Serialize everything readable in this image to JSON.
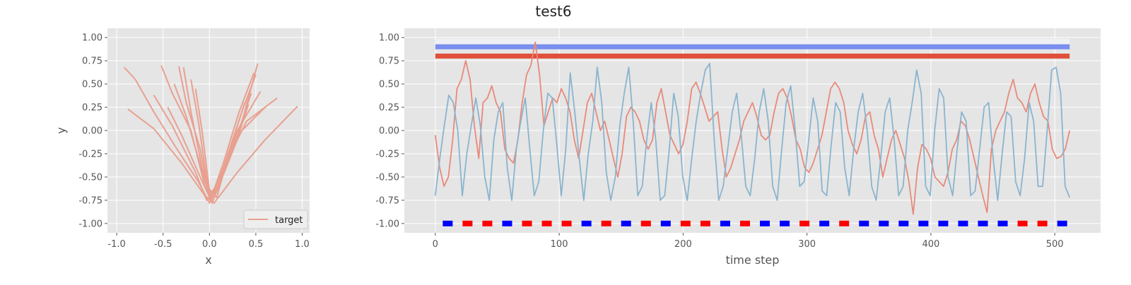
{
  "figure": {
    "title": "test6"
  },
  "colors": {
    "axes_bg": "#e5e5e5",
    "grid": "#ffffff",
    "target": "#e8a090",
    "signal_red": "#e8897a",
    "signal_blue": "#8ab4cf",
    "bar_light": "#eef0f6",
    "bar_blue": "#7b8ff0",
    "bar_red": "#e0503a",
    "marker_red": "#ff0000",
    "marker_blue": "#0000ff",
    "tick_text": "#555555"
  },
  "chart_data": [
    {
      "type": "line",
      "xlabel": "x",
      "ylabel": "y",
      "xlim": [
        -1.1,
        1.08
      ],
      "ylim": [
        -1.1,
        1.1
      ],
      "xticks": [
        "-1.0",
        "-0.5",
        "0.0",
        "0.5",
        "1.0"
      ],
      "yticks": [
        "1.00",
        "0.75",
        "0.50",
        "0.25",
        "0.00",
        "-0.25",
        "-0.50",
        "-0.75",
        "-1.00"
      ],
      "grid": true,
      "legend": {
        "placement": "lower-right",
        "entries": [
          "target"
        ]
      },
      "series": [
        {
          "name": "target",
          "segments": [
            [
              [
                -0.92,
                0.68
              ],
              [
                -0.8,
                0.55
              ],
              [
                -0.6,
                0.2
              ],
              [
                -0.35,
                -0.2
              ],
              [
                -0.12,
                -0.55
              ],
              [
                0.0,
                -0.78
              ],
              [
                0.1,
                -0.5
              ],
              [
                0.3,
                -0.1
              ],
              [
                0.52,
                0.72
              ]
            ],
            [
              [
                -0.88,
                0.23
              ],
              [
                -0.6,
                0.02
              ],
              [
                -0.3,
                -0.35
              ],
              [
                -0.05,
                -0.7
              ],
              [
                0.05,
                -0.78
              ],
              [
                0.3,
                -0.45
              ],
              [
                0.6,
                -0.1
              ],
              [
                0.95,
                0.26
              ]
            ],
            [
              [
                -0.52,
                0.7
              ],
              [
                -0.4,
                0.4
              ],
              [
                -0.2,
                0.0
              ],
              [
                -0.05,
                -0.6
              ],
              [
                0.02,
                -0.76
              ],
              [
                0.15,
                -0.4
              ],
              [
                0.35,
                0.2
              ],
              [
                0.5,
                0.6
              ]
            ],
            [
              [
                -0.33,
                0.69
              ],
              [
                -0.25,
                0.3
              ],
              [
                -0.1,
                -0.2
              ],
              [
                0.0,
                -0.72
              ],
              [
                0.12,
                -0.5
              ],
              [
                0.3,
                0.0
              ],
              [
                0.55,
                0.42
              ]
            ],
            [
              [
                -0.2,
                0.55
              ],
              [
                -0.12,
                0.1
              ],
              [
                -0.02,
                -0.6
              ],
              [
                0.05,
                -0.7
              ],
              [
                0.2,
                -0.3
              ],
              [
                0.4,
                0.1
              ],
              [
                0.73,
                0.35
              ]
            ],
            [
              [
                -0.6,
                0.38
              ],
              [
                -0.4,
                0.05
              ],
              [
                -0.15,
                -0.45
              ],
              [
                -0.03,
                -0.75
              ],
              [
                0.08,
                -0.6
              ],
              [
                0.25,
                -0.2
              ],
              [
                0.45,
                0.4
              ]
            ],
            [
              [
                -0.28,
                0.68
              ],
              [
                -0.2,
                0.2
              ],
              [
                -0.08,
                -0.4
              ],
              [
                0.02,
                -0.72
              ],
              [
                0.15,
                -0.35
              ],
              [
                0.32,
                0.2
              ],
              [
                0.48,
                0.62
              ]
            ],
            [
              [
                -0.45,
                0.25
              ],
              [
                -0.3,
                -0.05
              ],
              [
                -0.1,
                -0.5
              ],
              [
                0.03,
                -0.78
              ],
              [
                0.1,
                -0.6
              ],
              [
                0.28,
                -0.15
              ],
              [
                0.42,
                0.28
              ]
            ],
            [
              [
                -0.15,
                0.45
              ],
              [
                -0.08,
                0.0
              ],
              [
                0.0,
                -0.65
              ],
              [
                0.08,
                -0.72
              ],
              [
                0.22,
                -0.2
              ],
              [
                0.38,
                0.3
              ]
            ],
            [
              [
                -0.38,
                0.5
              ],
              [
                -0.25,
                0.15
              ],
              [
                -0.12,
                -0.3
              ],
              [
                0.0,
                -0.7
              ],
              [
                0.1,
                -0.55
              ],
              [
                0.3,
                -0.05
              ],
              [
                0.6,
                0.25
              ]
            ]
          ]
        }
      ]
    },
    {
      "type": "line",
      "title": "test6",
      "xlabel": "time step",
      "ylabel": "",
      "xlim": [
        -25,
        537
      ],
      "ylim": [
        -1.1,
        1.1
      ],
      "xticks": [
        "0",
        "100",
        "200",
        "300",
        "400",
        "500"
      ],
      "yticks": [
        "1.00",
        "0.75",
        "0.50",
        "0.25",
        "0.00",
        "-0.25",
        "-0.50",
        "-0.75",
        "-1.00"
      ],
      "grid": true,
      "series": [
        {
          "name": "",
          "color": "signal_red",
          "x_end": 512,
          "y": [
            -0.05,
            -0.4,
            -0.6,
            -0.5,
            -0.1,
            0.45,
            0.55,
            0.75,
            0.55,
            0.05,
            -0.3,
            0.3,
            0.35,
            0.48,
            0.3,
            0.2,
            -0.2,
            -0.3,
            -0.35,
            -0.1,
            0.3,
            0.6,
            0.7,
            0.95,
            0.6,
            0.05,
            0.2,
            0.35,
            0.3,
            0.45,
            0.35,
            0.2,
            -0.1,
            -0.3,
            0.0,
            0.3,
            0.4,
            0.2,
            0.0,
            0.1,
            -0.1,
            -0.3,
            -0.5,
            -0.25,
            0.15,
            0.25,
            0.2,
            0.1,
            -0.1,
            -0.2,
            -0.1,
            0.3,
            0.45,
            0.2,
            -0.05,
            -0.15,
            -0.25,
            -0.15,
            0.1,
            0.45,
            0.52,
            0.4,
            0.25,
            0.1,
            0.15,
            0.2,
            -0.2,
            -0.5,
            -0.4,
            -0.25,
            -0.1,
            0.1,
            0.2,
            0.3,
            0.15,
            -0.05,
            -0.1,
            -0.05,
            0.2,
            0.4,
            0.45,
            0.35,
            0.15,
            -0.1,
            -0.2,
            -0.4,
            -0.45,
            -0.35,
            -0.2,
            -0.05,
            0.2,
            0.45,
            0.52,
            0.45,
            0.3,
            0.0,
            -0.15,
            -0.25,
            -0.1,
            0.15,
            0.2,
            -0.05,
            -0.2,
            -0.5,
            -0.3,
            -0.1,
            0.0,
            -0.15,
            -0.3,
            -0.55,
            -0.9,
            -0.4,
            -0.15,
            -0.2,
            -0.3,
            -0.5,
            -0.55,
            -0.6,
            -0.45,
            -0.2,
            -0.1,
            0.1,
            0.05,
            -0.1,
            -0.3,
            -0.5,
            -0.7,
            -0.88,
            -0.2,
            0.0,
            0.1,
            0.2,
            0.4,
            0.55,
            0.35,
            0.3,
            0.2,
            0.4,
            0.5,
            0.3,
            0.15,
            0.1,
            -0.2,
            -0.3,
            -0.28,
            -0.2,
            0.0
          ]
        },
        {
          "name": "",
          "color": "signal_blue",
          "x_end": 512,
          "y": [
            -0.7,
            -0.3,
            0.05,
            0.38,
            0.3,
            0.0,
            -0.7,
            -0.25,
            0.05,
            0.35,
            0.05,
            -0.5,
            -0.75,
            -0.1,
            0.2,
            0.3,
            -0.4,
            -0.75,
            -0.2,
            0.1,
            0.35,
            -0.2,
            -0.7,
            -0.55,
            0.0,
            0.4,
            0.35,
            -0.15,
            -0.7,
            -0.2,
            0.62,
            0.2,
            -0.3,
            -0.75,
            -0.25,
            0.1,
            0.68,
            0.3,
            -0.45,
            -0.75,
            -0.5,
            0.05,
            0.4,
            0.68,
            0.1,
            -0.7,
            -0.6,
            -0.1,
            0.3,
            -0.1,
            -0.75,
            -0.7,
            -0.2,
            0.4,
            0.15,
            -0.5,
            -0.75,
            -0.3,
            0.1,
            0.4,
            0.65,
            0.72,
            -0.1,
            -0.75,
            -0.6,
            -0.2,
            0.2,
            0.4,
            -0.05,
            -0.6,
            -0.7,
            -0.3,
            0.2,
            0.45,
            0.1,
            -0.6,
            -0.75,
            -0.2,
            0.3,
            0.48,
            0.0,
            -0.6,
            -0.55,
            -0.1,
            0.35,
            0.1,
            -0.65,
            -0.7,
            -0.15,
            0.3,
            0.2,
            -0.4,
            -0.7,
            -0.2,
            0.2,
            0.4,
            0.0,
            -0.6,
            -0.75,
            -0.3,
            0.2,
            0.35,
            -0.1,
            -0.7,
            -0.6,
            0.0,
            0.3,
            0.65,
            0.4,
            -0.6,
            -0.7,
            0.0,
            0.45,
            0.35,
            -0.5,
            -0.7,
            -0.2,
            0.2,
            0.1,
            -0.7,
            -0.65,
            -0.2,
            0.25,
            0.3,
            -0.3,
            -0.75,
            -0.25,
            0.2,
            0.15,
            -0.55,
            -0.7,
            -0.3,
            0.3,
            0.1,
            -0.6,
            -0.6,
            0.0,
            0.65,
            0.68,
            0.4,
            -0.6,
            -0.72
          ]
        }
      ],
      "bars": [
        {
          "color": "bar_light",
          "x_range": [
            0,
            512
          ],
          "y": 0.96
        },
        {
          "color": "bar_blue",
          "x_range": [
            0,
            512
          ],
          "y": 0.9
        },
        {
          "color": "bar_red",
          "x_range": [
            0,
            512
          ],
          "y": 0.8
        }
      ],
      "markers": {
        "y": -1.0,
        "x": [
          10,
          26,
          42,
          58,
          74,
          90,
          106,
          122,
          138,
          154,
          170,
          186,
          202,
          218,
          234,
          250,
          266,
          282,
          298,
          314,
          330,
          346,
          362,
          378,
          394,
          410,
          426,
          442,
          458,
          474,
          490,
          506
        ],
        "colors": [
          "b",
          "r",
          "r",
          "b",
          "r",
          "r",
          "r",
          "b",
          "r",
          "b",
          "r",
          "b",
          "r",
          "r",
          "b",
          "r",
          "b",
          "b",
          "r",
          "b",
          "r",
          "b",
          "b",
          "b",
          "b",
          "b",
          "b",
          "b",
          "b",
          "r",
          "r",
          "b"
        ]
      }
    }
  ]
}
